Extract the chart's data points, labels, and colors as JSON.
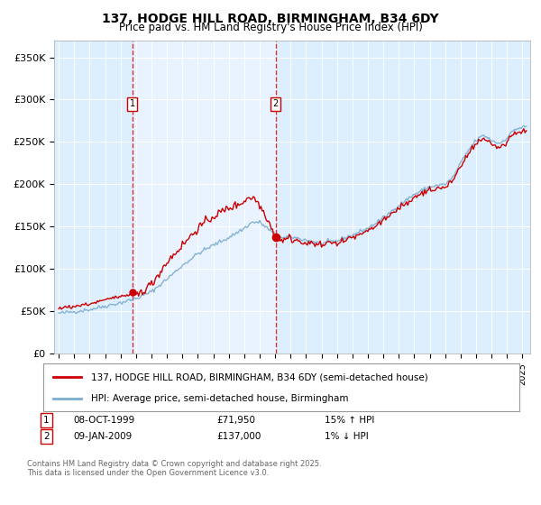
{
  "title_line1": "137, HODGE HILL ROAD, BIRMINGHAM, B34 6DY",
  "title_line2": "Price paid vs. HM Land Registry's House Price Index (HPI)",
  "ylabel_ticks": [
    "£0",
    "£50K",
    "£100K",
    "£150K",
    "£200K",
    "£250K",
    "£300K",
    "£350K"
  ],
  "ytick_values": [
    0,
    50000,
    100000,
    150000,
    200000,
    250000,
    300000,
    350000
  ],
  "ylim": [
    0,
    370000
  ],
  "purchase1": {
    "label": "1",
    "date": "08-OCT-1999",
    "price": 71950,
    "hpi_diff": "15% ↑ HPI"
  },
  "purchase2": {
    "label": "2",
    "date": "09-JAN-2009",
    "price": 137000,
    "hpi_diff": "1% ↓ HPI"
  },
  "legend_line1": "137, HODGE HILL ROAD, BIRMINGHAM, B34 6DY (semi-detached house)",
  "legend_line2": "HPI: Average price, semi-detached house, Birmingham",
  "footnote": "Contains HM Land Registry data © Crown copyright and database right 2025.\nThis data is licensed under the Open Government Licence v3.0.",
  "line_color_property": "#cc0000",
  "line_color_hpi": "#7aadce",
  "background_color": "#ddeeff",
  "shade_color": "#ccddf0",
  "purchase1_x": 1999.77,
  "purchase2_x": 2009.03,
  "xlim_left": 1994.7,
  "xlim_right": 2025.5
}
